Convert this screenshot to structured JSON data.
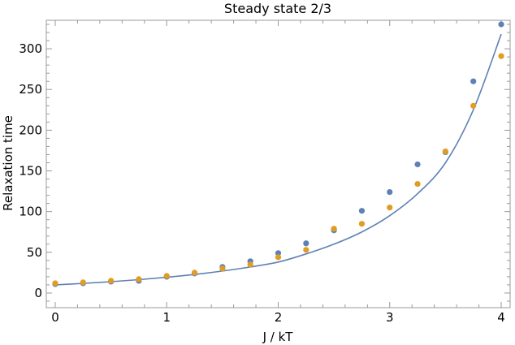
{
  "chart_data": {
    "type": "scatter",
    "title": "Steady state 2/3",
    "xlabel": "J / kT",
    "ylabel": "Relaxation time",
    "xlim": [
      -0.08,
      4.08
    ],
    "ylim": [
      -18,
      335
    ],
    "xticks": [
      0,
      1,
      2,
      3,
      4
    ],
    "yticks": [
      0,
      50,
      100,
      150,
      200,
      250,
      300
    ],
    "x_minor_step": 0.2,
    "y_minor_step": 10,
    "frame": true,
    "grid": false,
    "legend": "none",
    "x": [
      0,
      0.25,
      0.5,
      0.75,
      1.0,
      1.25,
      1.5,
      1.75,
      2.0,
      2.25,
      2.5,
      2.75,
      3.0,
      3.25,
      3.5,
      3.75,
      4.0
    ],
    "series": [
      {
        "color": "#5e81b5",
        "values": [
          11,
          12,
          14,
          15,
          20,
          24,
          32,
          39,
          49,
          61,
          77,
          101,
          124,
          158,
          173,
          260,
          330
        ]
      },
      {
        "color": "#e19c24",
        "values": [
          12,
          13,
          15,
          17,
          21,
          25,
          30,
          35,
          44,
          53,
          79,
          85,
          105,
          134,
          174,
          230,
          291
        ]
      }
    ],
    "fit_curve": {
      "color": "#5e81b5",
      "x": [
        0,
        0.25,
        0.5,
        0.75,
        1.0,
        1.25,
        1.5,
        1.75,
        2.0,
        2.25,
        2.5,
        2.75,
        3.0,
        3.25,
        3.5,
        3.75,
        4.0
      ],
      "y": [
        10.0,
        11.8,
        13.9,
        16.4,
        19.3,
        22.8,
        27.0,
        32.0,
        38.0,
        48.0,
        60.0,
        75.0,
        95.0,
        122.0,
        160.0,
        225.0,
        318.0
      ]
    }
  }
}
